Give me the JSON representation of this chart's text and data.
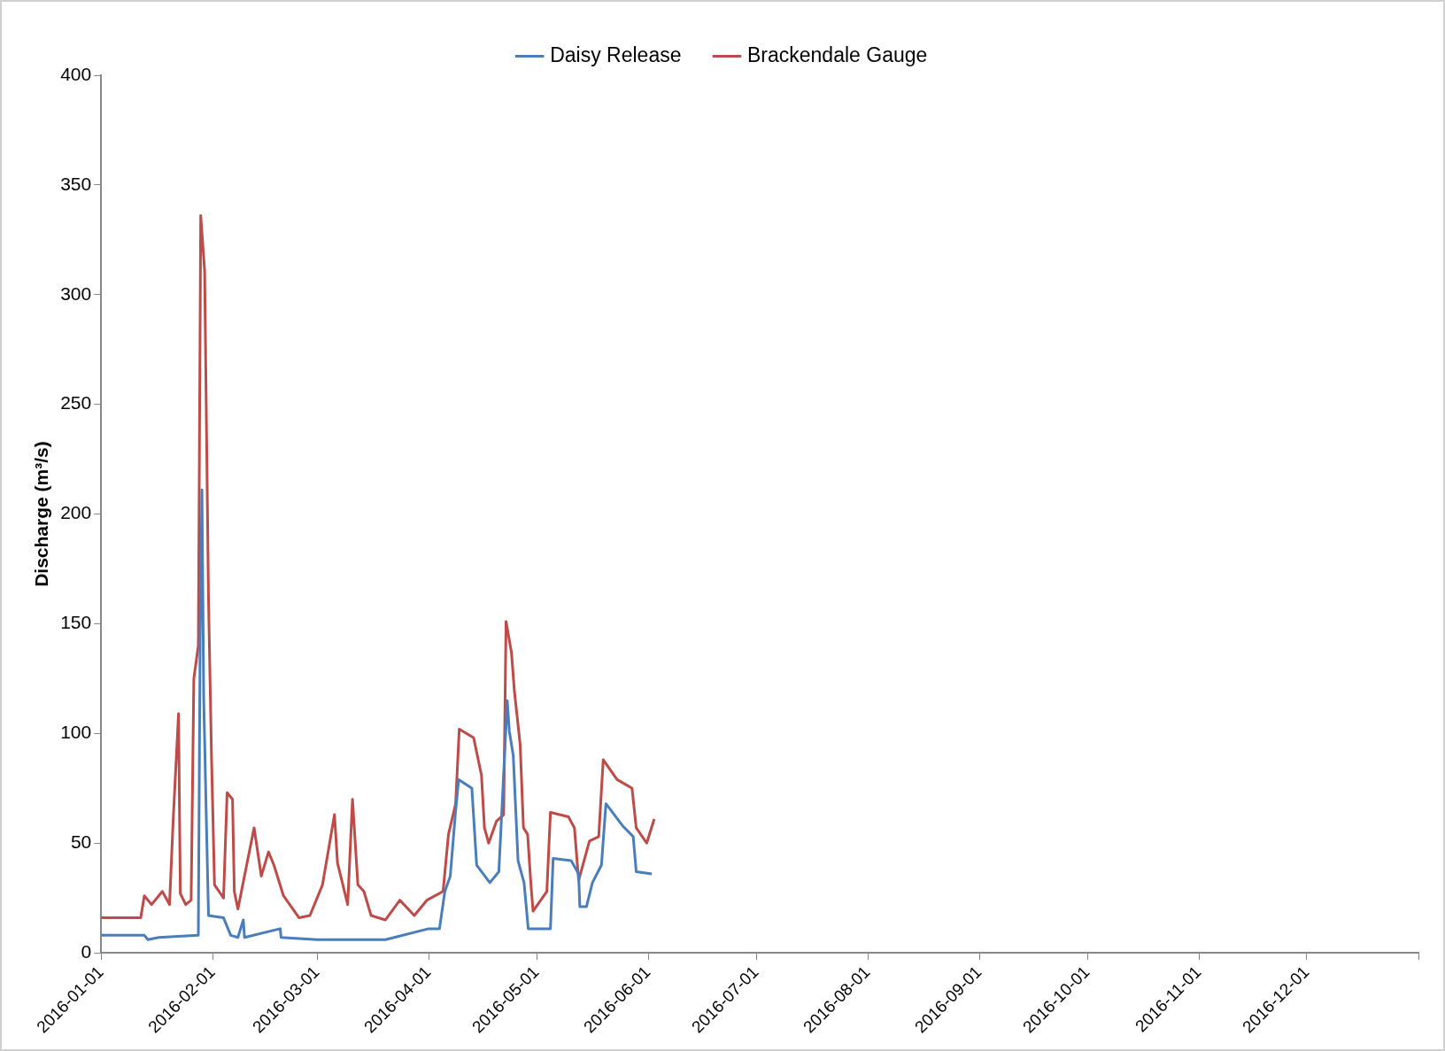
{
  "chart_data": {
    "type": "line",
    "ylabel": "Discharge (m³/s)",
    "legend": "top",
    "grid": false,
    "marker": "none",
    "line_style": "solid",
    "xlim": [
      "2016-01-01",
      "2017-01-01"
    ],
    "xticks": [
      "2016-01-01",
      "2016-02-01",
      "2016-03-01",
      "2016-04-01",
      "2016-05-01",
      "2016-06-01",
      "2016-07-01",
      "2016-08-01",
      "2016-09-01",
      "2016-10-01",
      "2016-11-01",
      "2016-12-01",
      {
        "value": "2017-01-01",
        "label": null
      }
    ],
    "ylim": [
      0,
      400
    ],
    "yticks": [
      0,
      50,
      100,
      150,
      200,
      250,
      300,
      350,
      400
    ],
    "series": [
      {
        "name": "Daisy Release",
        "color": "#4a7ebb",
        "x": [
          "2016-01-01",
          "2016-01-13",
          "2016-01-14",
          "2016-01-17",
          "2016-01-28",
          "2016-01-28T12:00",
          "2016-01-29",
          "2016-01-29T12:00",
          "2016-01-30T08:00",
          "2016-01-30T20:00",
          "2016-02-04",
          "2016-02-06",
          "2016-02-08",
          "2016-02-09T12:00",
          "2016-02-09T20:00",
          "2016-02-19T18:00",
          "2016-02-20",
          "2016-03-01",
          "2016-03-20",
          "2016-04-01",
          "2016-04-04",
          "2016-04-05T12:00",
          "2016-04-07",
          "2016-04-08T12:00",
          "2016-04-09T08:00",
          "2016-04-13",
          "2016-04-14T08:00",
          "2016-04-18",
          "2016-04-20T12:00",
          "2016-04-21T16:00",
          "2016-04-22T20:00",
          "2016-04-23T10:00",
          "2016-04-24T12:00",
          "2016-04-25T20:00",
          "2016-04-27T12:00",
          "2016-04-28T16:00",
          "2016-05-04T20:00",
          "2016-05-05T14:00",
          "2016-05-10T14:00",
          "2016-05-12T16:00",
          "2016-05-13",
          "2016-05-14T20:00",
          "2016-05-16T12:00",
          "2016-05-19",
          "2016-05-20T06:00",
          "2016-05-24T20:00",
          "2016-05-27T20:00",
          "2016-05-28T16:00",
          "2016-06-02"
        ],
        "values": [
          8,
          8,
          6,
          7,
          8,
          143,
          211,
          116,
          53,
          17,
          16,
          8,
          7,
          15,
          7,
          11,
          7,
          6,
          6,
          11,
          11,
          28,
          35,
          65,
          79,
          75,
          40,
          32,
          37,
          76,
          115,
          101,
          90,
          42,
          32,
          11,
          11,
          43,
          42,
          36,
          21,
          21,
          32,
          40,
          68,
          58,
          53,
          37,
          36
        ]
      },
      {
        "name": "Brackendale Gauge",
        "color": "#be4b48",
        "x": [
          "2016-01-01",
          "2016-01-12",
          "2016-01-13",
          "2016-01-15",
          "2016-01-18",
          "2016-01-20",
          "2016-01-21",
          "2016-01-22T12:00",
          "2016-01-23",
          "2016-01-24T12:00",
          "2016-01-26",
          "2016-01-26T18:00",
          "2016-01-28",
          "2016-01-28T16:00",
          "2016-01-29T18:00",
          "2016-01-30T20:00",
          "2016-01-31T16:00",
          "2016-02-01T12:00",
          "2016-02-04",
          "2016-02-05",
          "2016-02-06T12:00",
          "2016-02-07",
          "2016-02-08",
          "2016-02-12T12:00",
          "2016-02-14T12:00",
          "2016-02-16T12:00",
          "2016-02-18",
          "2016-02-20T16:00",
          "2016-02-25",
          "2016-02-28",
          "2016-03-02T12:00",
          "2016-03-05T20:00",
          "2016-03-06T16:00",
          "2016-03-09T12:00",
          "2016-03-10T20:00",
          "2016-03-12T08:00",
          "2016-03-14",
          "2016-03-16",
          "2016-03-20",
          "2016-03-24",
          "2016-03-28",
          "2016-03-31T12:00",
          "2016-04-05",
          "2016-04-06T12:00",
          "2016-04-08T12:00",
          "2016-04-09T12:00",
          "2016-04-13T12:00",
          "2016-04-15T16:00",
          "2016-04-16T12:00",
          "2016-04-17T16:00",
          "2016-04-19T20:00",
          "2016-04-21T20:00",
          "2016-04-22T12:00",
          "2016-04-24",
          "2016-04-24T20:00",
          "2016-04-26T10:00",
          "2016-04-27T08:00",
          "2016-04-28T12:00",
          "2016-04-29T08:00",
          "2016-04-30",
          "2016-05-03T20:00",
          "2016-05-04T20:00",
          "2016-05-09T20:00",
          "2016-05-11T12:00",
          "2016-05-12T16:00",
          "2016-05-15T16:00",
          "2016-05-18T06:00",
          "2016-05-19T12:00",
          "2016-05-23T08:00",
          "2016-05-27T12:00",
          "2016-05-28T16:00",
          "2016-05-31T14:00",
          "2016-06-02T16:00"
        ],
        "values": [
          16,
          16,
          26,
          22,
          28,
          22,
          60,
          109,
          27,
          22,
          24,
          125,
          140,
          336,
          311,
          161,
          89,
          31,
          25,
          73,
          70,
          28,
          20,
          57,
          35,
          46,
          40,
          26,
          16,
          17,
          31,
          63,
          41,
          22,
          70,
          31,
          28,
          17,
          15,
          24,
          17,
          24,
          28,
          54,
          68,
          102,
          98,
          81,
          57,
          50,
          60,
          63,
          151,
          137,
          119,
          95,
          57,
          54,
          33,
          19,
          28,
          64,
          62,
          57,
          33,
          51,
          53,
          88,
          79,
          75,
          57,
          50,
          61
        ]
      }
    ]
  }
}
